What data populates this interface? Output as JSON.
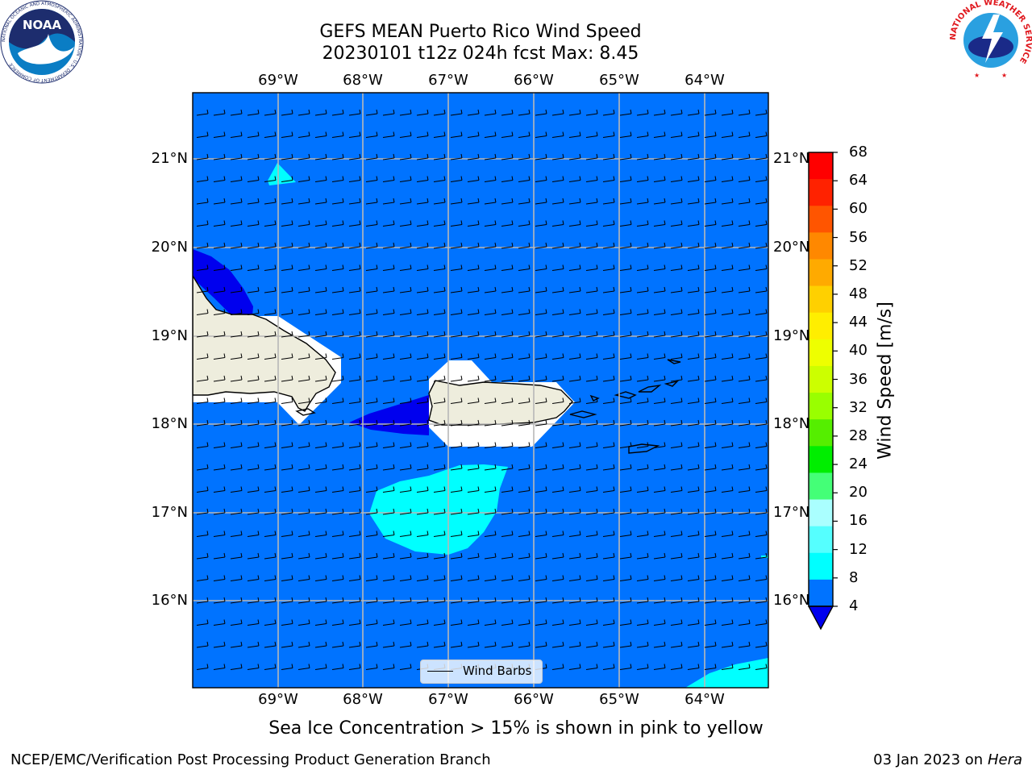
{
  "title": {
    "line1": "GEFS MEAN Puerto Rico Wind Speed",
    "line2": "20230101 t12z 024h fcst   Max: 8.45"
  },
  "map": {
    "lon_labels": [
      "69°W",
      "68°W",
      "67°W",
      "66°W",
      "65°W",
      "64°W"
    ],
    "lat_labels": [
      "21°N",
      "20°N",
      "19°N",
      "18°N",
      "17°N",
      "16°N"
    ],
    "ocean_color": "#0073ff",
    "land_color": "#eeeddd"
  },
  "legend": {
    "label": "Wind Barbs"
  },
  "colorbar": {
    "label": "Wind Speed [m/s]",
    "ticks": [
      "68",
      "64",
      "60",
      "56",
      "52",
      "48",
      "44",
      "40",
      "36",
      "32",
      "28",
      "24",
      "20",
      "16",
      "12",
      "8",
      "4"
    ],
    "colors": [
      "#ff0000",
      "#ff2200",
      "#ff5500",
      "#ff8800",
      "#ffaa00",
      "#ffd000",
      "#ffee00",
      "#eeff00",
      "#ccff00",
      "#99ff00",
      "#55ee00",
      "#00ee00",
      "#44ff77",
      "#aaffff",
      "#55ffff",
      "#00ffff",
      "#0073ff"
    ],
    "under_color": "#0000ee"
  },
  "note": "Sea Ice Concentration > 15% is shown in pink to yellow",
  "footer": {
    "left": "NCEP/EMC/Verification Post Processing Product Generation Branch",
    "date": "03 Jan 2023 on ",
    "machine": "Hera"
  },
  "logos": {
    "noaa": "NOAA",
    "noaa_ring": "NATIONAL OCEANIC AND ATMOSPHERIC ADMINISTRATION · U.S. DEPARTMENT OF COMMERCE",
    "nws_ring": "NATIONAL WEATHER SERVICE"
  }
}
